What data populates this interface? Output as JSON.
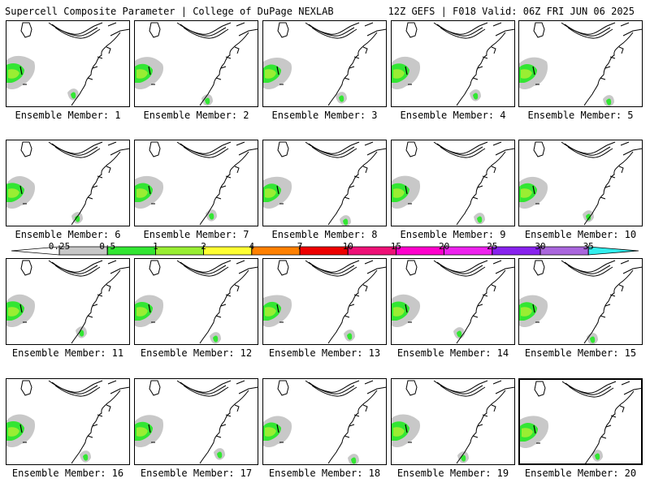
{
  "header": {
    "left": "Supercell Composite Parameter | College of DuPage NEXLAB",
    "right": "12Z GEFS | F018 Valid: 06Z FRI JUN 06 2025"
  },
  "colorbar": {
    "labels": [
      "0.25",
      "0.5",
      "1",
      "2",
      "4",
      "7",
      "10",
      "15",
      "20",
      "25",
      "30",
      "35"
    ],
    "colors": [
      "#ffffff",
      "#c8c8c8",
      "#33e633",
      "#99ee33",
      "#ffff33",
      "#ff8000",
      "#ee0000",
      "#ee1177",
      "#ff00cc",
      "#ee22ee",
      "#8822ee",
      "#aa66dd",
      "#33eeee"
    ]
  },
  "panels": [
    {
      "caption": "Ensemble Member: 1"
    },
    {
      "caption": "Ensemble Member: 2"
    },
    {
      "caption": "Ensemble Member: 3"
    },
    {
      "caption": "Ensemble Member: 4"
    },
    {
      "caption": "Ensemble Member: 5"
    },
    {
      "caption": "Ensemble Member: 6"
    },
    {
      "caption": "Ensemble Member: 7"
    },
    {
      "caption": "Ensemble Member: 8"
    },
    {
      "caption": "Ensemble Member: 9"
    },
    {
      "caption": "Ensemble Member: 10"
    },
    {
      "caption": "Ensemble Member: 11"
    },
    {
      "caption": "Ensemble Member: 12"
    },
    {
      "caption": "Ensemble Member: 13"
    },
    {
      "caption": "Ensemble Member: 14"
    },
    {
      "caption": "Ensemble Member: 15"
    },
    {
      "caption": "Ensemble Member: 16"
    },
    {
      "caption": "Ensemble Member: 17"
    },
    {
      "caption": "Ensemble Member: 18"
    },
    {
      "caption": "Ensemble Member: 19"
    },
    {
      "caption": "Ensemble Member: 20",
      "selected": true
    }
  ]
}
